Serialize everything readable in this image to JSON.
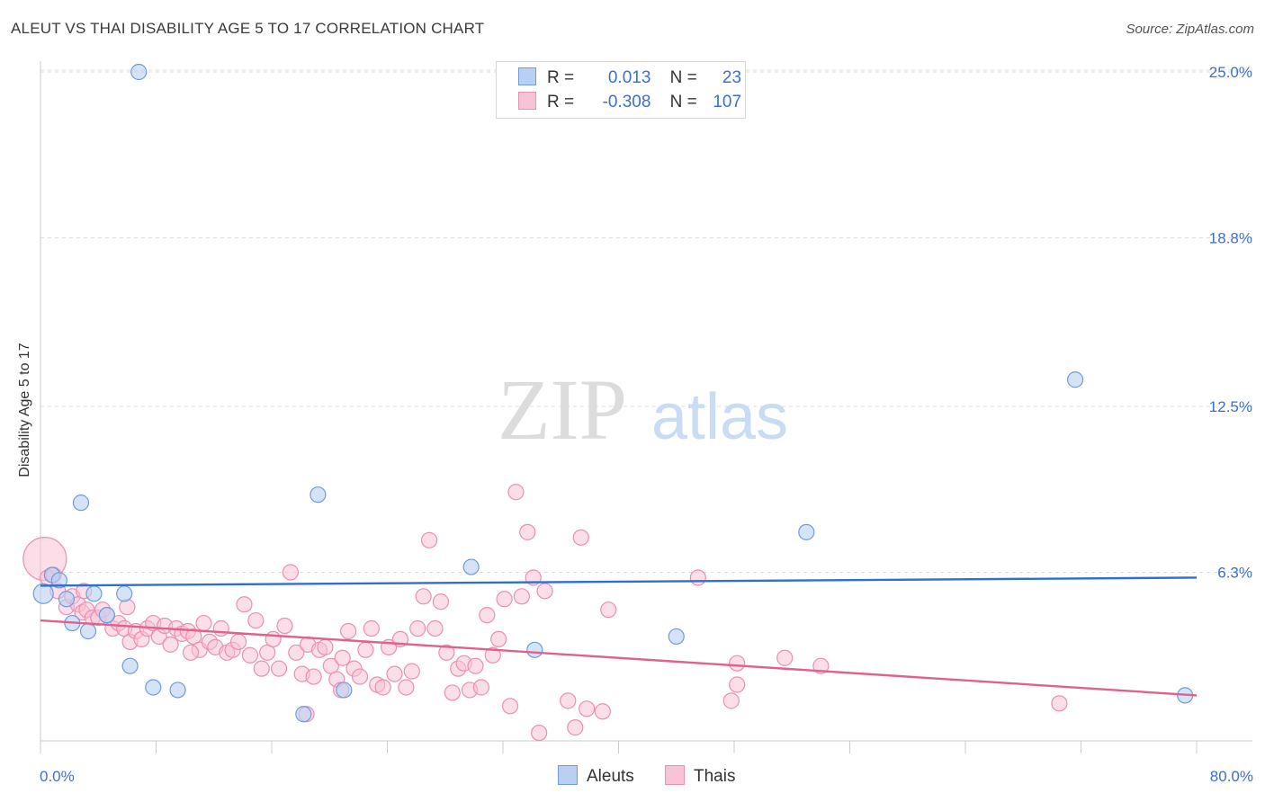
{
  "title": "ALEUT VS THAI DISABILITY AGE 5 TO 17 CORRELATION CHART",
  "source": "Source: ZipAtlas.com",
  "watermark": {
    "zip": "ZIP",
    "atlas": "atlas"
  },
  "legend": {
    "r_label": "R =",
    "n_label": "N =",
    "aleut": {
      "r": "0.013",
      "n": "23"
    },
    "thai": {
      "r": "-0.308",
      "n": "107"
    }
  },
  "colors": {
    "aleut_fill": "#b9d0f2",
    "aleut_stroke": "#6f9be0",
    "aleut_line": "#2f6fd0",
    "thai_fill": "#f7c3d6",
    "thai_stroke": "#ec8fb0",
    "thai_line": "#e0608f",
    "tick_label": "#3b6fd4",
    "grid": "#dcdcdc"
  },
  "chart_data": {
    "type": "scatter",
    "ylabel": "Disability Age 5 to 17",
    "xlim": [
      0,
      80
    ],
    "ylim": [
      0,
      25
    ],
    "x_tick_labels": [
      "0.0%",
      "80.0%"
    ],
    "y_ticks": [
      6.3,
      12.5,
      18.8,
      25.0
    ],
    "y_tick_labels": [
      "6.3%",
      "12.5%",
      "18.8%",
      "25.0%"
    ],
    "grid": true,
    "legend_position": "top-center",
    "series": [
      {
        "name": "Aleuts",
        "r": 0.013,
        "n": 23,
        "trend": {
          "x": [
            0,
            80
          ],
          "y": [
            5.8,
            6.1
          ]
        },
        "points": [
          {
            "x": 6.8,
            "y": 25.0
          },
          {
            "x": 0.2,
            "y": 5.5
          },
          {
            "x": 0.8,
            "y": 6.2
          },
          {
            "x": 1.3,
            "y": 6.0
          },
          {
            "x": 1.8,
            "y": 5.3
          },
          {
            "x": 2.2,
            "y": 4.4
          },
          {
            "x": 2.8,
            "y": 8.9
          },
          {
            "x": 3.3,
            "y": 4.1
          },
          {
            "x": 3.7,
            "y": 5.5
          },
          {
            "x": 4.6,
            "y": 4.7
          },
          {
            "x": 5.8,
            "y": 5.5
          },
          {
            "x": 6.2,
            "y": 2.8
          },
          {
            "x": 7.8,
            "y": 2.0
          },
          {
            "x": 9.5,
            "y": 1.9
          },
          {
            "x": 18.2,
            "y": 1.0
          },
          {
            "x": 19.2,
            "y": 9.2
          },
          {
            "x": 21.0,
            "y": 1.9
          },
          {
            "x": 29.8,
            "y": 6.5
          },
          {
            "x": 34.2,
            "y": 3.4
          },
          {
            "x": 44.0,
            "y": 3.9
          },
          {
            "x": 53.0,
            "y": 7.8
          },
          {
            "x": 71.6,
            "y": 13.5
          },
          {
            "x": 79.2,
            "y": 1.7
          }
        ]
      },
      {
        "name": "Thais",
        "r": -0.308,
        "n": 107,
        "trend": {
          "x": [
            0,
            80
          ],
          "y": [
            4.5,
            1.7
          ]
        },
        "points": [
          {
            "x": 0.3,
            "y": 6.8
          },
          {
            "x": 0.5,
            "y": 6.1
          },
          {
            "x": 0.9,
            "y": 6.2
          },
          {
            "x": 1.2,
            "y": 5.6
          },
          {
            "x": 1.8,
            "y": 5.0
          },
          {
            "x": 2.2,
            "y": 5.4
          },
          {
            "x": 2.6,
            "y": 5.1
          },
          {
            "x": 2.9,
            "y": 4.8
          },
          {
            "x": 3.2,
            "y": 4.9
          },
          {
            "x": 3.6,
            "y": 4.6
          },
          {
            "x": 4.0,
            "y": 4.6
          },
          {
            "x": 4.3,
            "y": 4.9
          },
          {
            "x": 4.6,
            "y": 4.7
          },
          {
            "x": 5.0,
            "y": 4.2
          },
          {
            "x": 5.4,
            "y": 4.4
          },
          {
            "x": 5.8,
            "y": 4.2
          },
          {
            "x": 6.2,
            "y": 3.7
          },
          {
            "x": 6.6,
            "y": 4.1
          },
          {
            "x": 7.0,
            "y": 3.8
          },
          {
            "x": 7.4,
            "y": 4.2
          },
          {
            "x": 7.8,
            "y": 4.4
          },
          {
            "x": 8.2,
            "y": 3.9
          },
          {
            "x": 8.6,
            "y": 4.3
          },
          {
            "x": 9.0,
            "y": 3.6
          },
          {
            "x": 9.4,
            "y": 4.2
          },
          {
            "x": 9.8,
            "y": 4.0
          },
          {
            "x": 10.2,
            "y": 4.1
          },
          {
            "x": 10.6,
            "y": 3.9
          },
          {
            "x": 11.0,
            "y": 3.4
          },
          {
            "x": 11.3,
            "y": 4.4
          },
          {
            "x": 11.7,
            "y": 3.7
          },
          {
            "x": 12.1,
            "y": 3.5
          },
          {
            "x": 12.5,
            "y": 4.2
          },
          {
            "x": 12.9,
            "y": 3.3
          },
          {
            "x": 13.3,
            "y": 3.4
          },
          {
            "x": 13.7,
            "y": 3.7
          },
          {
            "x": 14.1,
            "y": 5.1
          },
          {
            "x": 14.5,
            "y": 3.2
          },
          {
            "x": 14.9,
            "y": 4.5
          },
          {
            "x": 15.3,
            "y": 2.7
          },
          {
            "x": 15.7,
            "y": 3.3
          },
          {
            "x": 16.1,
            "y": 3.8
          },
          {
            "x": 16.5,
            "y": 2.7
          },
          {
            "x": 16.9,
            "y": 4.3
          },
          {
            "x": 17.3,
            "y": 6.3
          },
          {
            "x": 17.7,
            "y": 3.3
          },
          {
            "x": 18.1,
            "y": 2.5
          },
          {
            "x": 18.5,
            "y": 3.6
          },
          {
            "x": 18.9,
            "y": 2.4
          },
          {
            "x": 19.3,
            "y": 3.4
          },
          {
            "x": 19.7,
            "y": 3.5
          },
          {
            "x": 20.1,
            "y": 2.8
          },
          {
            "x": 20.5,
            "y": 2.3
          },
          {
            "x": 20.9,
            "y": 3.1
          },
          {
            "x": 21.3,
            "y": 4.1
          },
          {
            "x": 21.7,
            "y": 2.7
          },
          {
            "x": 22.1,
            "y": 2.4
          },
          {
            "x": 22.5,
            "y": 3.4
          },
          {
            "x": 22.9,
            "y": 4.2
          },
          {
            "x": 23.3,
            "y": 2.1
          },
          {
            "x": 23.7,
            "y": 2.0
          },
          {
            "x": 24.1,
            "y": 3.5
          },
          {
            "x": 24.5,
            "y": 2.5
          },
          {
            "x": 24.9,
            "y": 3.8
          },
          {
            "x": 25.3,
            "y": 2.0
          },
          {
            "x": 25.7,
            "y": 2.6
          },
          {
            "x": 26.1,
            "y": 4.2
          },
          {
            "x": 26.5,
            "y": 5.4
          },
          {
            "x": 26.9,
            "y": 7.5
          },
          {
            "x": 27.3,
            "y": 4.2
          },
          {
            "x": 27.7,
            "y": 5.2
          },
          {
            "x": 28.1,
            "y": 3.3
          },
          {
            "x": 28.5,
            "y": 1.8
          },
          {
            "x": 28.9,
            "y": 2.7
          },
          {
            "x": 29.3,
            "y": 2.9
          },
          {
            "x": 29.7,
            "y": 1.9
          },
          {
            "x": 30.1,
            "y": 2.8
          },
          {
            "x": 30.5,
            "y": 2.0
          },
          {
            "x": 30.9,
            "y": 4.7
          },
          {
            "x": 31.3,
            "y": 3.2
          },
          {
            "x": 31.7,
            "y": 3.8
          },
          {
            "x": 32.1,
            "y": 5.3
          },
          {
            "x": 32.5,
            "y": 1.3
          },
          {
            "x": 32.9,
            "y": 9.3
          },
          {
            "x": 33.3,
            "y": 5.4
          },
          {
            "x": 33.7,
            "y": 7.8
          },
          {
            "x": 34.1,
            "y": 6.1
          },
          {
            "x": 34.5,
            "y": 0.3
          },
          {
            "x": 34.9,
            "y": 5.6
          },
          {
            "x": 36.5,
            "y": 1.5
          },
          {
            "x": 37.0,
            "y": 0.5
          },
          {
            "x": 37.4,
            "y": 7.6
          },
          {
            "x": 37.8,
            "y": 1.2
          },
          {
            "x": 38.9,
            "y": 1.1
          },
          {
            "x": 39.3,
            "y": 4.9
          },
          {
            "x": 45.5,
            "y": 6.1
          },
          {
            "x": 47.8,
            "y": 1.5
          },
          {
            "x": 48.2,
            "y": 2.9
          },
          {
            "x": 48.2,
            "y": 2.1
          },
          {
            "x": 51.5,
            "y": 3.1
          },
          {
            "x": 54.0,
            "y": 2.8
          },
          {
            "x": 70.5,
            "y": 1.4
          },
          {
            "x": 18.4,
            "y": 1.0
          },
          {
            "x": 20.8,
            "y": 1.9
          },
          {
            "x": 6.0,
            "y": 5.0
          },
          {
            "x": 3.0,
            "y": 5.6
          },
          {
            "x": 10.4,
            "y": 3.3
          }
        ]
      }
    ]
  },
  "bottom_legend": {
    "aleuts": "Aleuts",
    "thais": "Thais"
  }
}
